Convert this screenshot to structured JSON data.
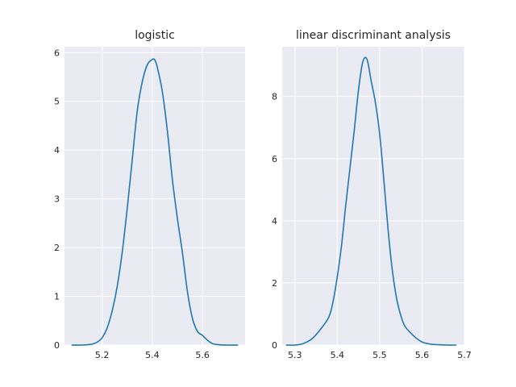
{
  "colors": {
    "curve": "#1f77b4",
    "background": "#eaeaf2",
    "grid": "#ffffff"
  },
  "chart_data": [
    {
      "type": "line",
      "title": "logistic",
      "xlim": [
        5.05,
        5.77
      ],
      "ylim": [
        0,
        6.12
      ],
      "xticks": [
        5.2,
        5.4,
        5.6
      ],
      "xtick_labels": [
        "5.2",
        "5.4",
        "5.6"
      ],
      "yticks": [
        0,
        1,
        2,
        3,
        4,
        5,
        6
      ],
      "ytick_labels": [
        "0",
        "1",
        "2",
        "3",
        "4",
        "5",
        "6"
      ],
      "grid": true,
      "series": [
        {
          "x": [
            5.08,
            5.12,
            5.16,
            5.18,
            5.2,
            5.22,
            5.24,
            5.26,
            5.28,
            5.3,
            5.32,
            5.34,
            5.36,
            5.38,
            5.4,
            5.41,
            5.42,
            5.44,
            5.46,
            5.48,
            5.5,
            5.52,
            5.54,
            5.56,
            5.58,
            5.6,
            5.62,
            5.64,
            5.66,
            5.7,
            5.74
          ],
          "y": [
            0.0,
            0.0,
            0.02,
            0.06,
            0.15,
            0.35,
            0.7,
            1.2,
            1.9,
            2.8,
            3.8,
            4.8,
            5.4,
            5.75,
            5.86,
            5.85,
            5.7,
            5.2,
            4.4,
            3.4,
            2.6,
            1.9,
            1.1,
            0.55,
            0.28,
            0.2,
            0.1,
            0.03,
            0.01,
            0.0,
            0.0
          ]
        }
      ]
    },
    {
      "type": "line",
      "title": "linear discriminant analysis",
      "xlim": [
        5.27,
        5.7
      ],
      "ylim": [
        0,
        9.6
      ],
      "xticks": [
        5.3,
        5.4,
        5.5,
        5.6,
        5.7
      ],
      "xtick_labels": [
        "5.3",
        "5.4",
        "5.5",
        "5.6",
        "5.7"
      ],
      "yticks": [
        0,
        2,
        4,
        6,
        8
      ],
      "ytick_labels": [
        "0",
        "2",
        "4",
        "6",
        "8"
      ],
      "grid": true,
      "series": [
        {
          "x": [
            5.28,
            5.3,
            5.32,
            5.34,
            5.36,
            5.38,
            5.39,
            5.4,
            5.41,
            5.42,
            5.43,
            5.44,
            5.45,
            5.46,
            5.47,
            5.48,
            5.49,
            5.5,
            5.51,
            5.52,
            5.53,
            5.54,
            5.55,
            5.56,
            5.58,
            5.6,
            5.62,
            5.64,
            5.66,
            5.68
          ],
          "y": [
            0.0,
            0.0,
            0.05,
            0.2,
            0.5,
            0.9,
            1.4,
            2.2,
            3.2,
            4.5,
            5.7,
            6.9,
            8.2,
            9.1,
            9.2,
            8.5,
            7.8,
            6.8,
            5.3,
            3.7,
            2.4,
            1.5,
            0.95,
            0.6,
            0.3,
            0.1,
            0.03,
            0.01,
            0.0,
            0.0
          ]
        }
      ]
    }
  ]
}
